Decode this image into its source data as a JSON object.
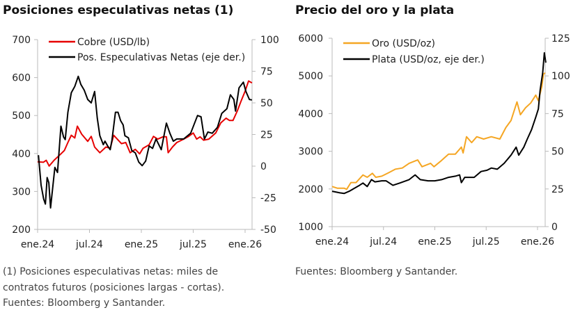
{
  "chart_data": [
    {
      "type": "line",
      "title": "Posiciones especulativas netas (1)",
      "x_unit": "months since ene.24",
      "xticks": [
        {
          "m": 0,
          "label": "ene.24"
        },
        {
          "m": 6,
          "label": "jul.24"
        },
        {
          "m": 12,
          "label": "ene.25"
        },
        {
          "m": 18,
          "label": "jul.25"
        },
        {
          "m": 24,
          "label": "ene.26"
        }
      ],
      "y_left": {
        "min": 200,
        "max": 700,
        "ticks": [
          "200",
          "300",
          "400",
          "500",
          "600",
          "700"
        ]
      },
      "y_right": {
        "min": -50,
        "max": 100,
        "ticks": [
          "-50",
          "-25",
          "0",
          "25",
          "50",
          "75",
          "100"
        ]
      },
      "legend_placement": "top-left",
      "series": [
        {
          "name": "Cobre (USD/lb)",
          "axis": "left",
          "color": "#e60000",
          "x": [
            0,
            0.67,
            1,
            1.34,
            1.9,
            2.7,
            3.1,
            3.5,
            3.9,
            4.3,
            4.6,
            5.1,
            5.8,
            6.2,
            6.6,
            7.2,
            7.9,
            8.4,
            8.8,
            9.7,
            10.2,
            10.7,
            11.3,
            11.8,
            12.2,
            12.9,
            13.4,
            13.9,
            14.5,
            14.9,
            15.1,
            15.6,
            16.1,
            16.9,
            17.4,
            18.0,
            18.4,
            18.8,
            19.2,
            19.8,
            20.6,
            21.2,
            21.8,
            22.2,
            22.6,
            23.1,
            23.5,
            24.0,
            24.4,
            24.8
          ],
          "y": [
            378,
            377,
            382,
            367,
            382,
            399,
            408,
            429,
            448,
            441,
            472,
            451,
            432,
            445,
            417,
            402,
            417,
            414,
            448,
            426,
            429,
            402,
            411,
            399,
            414,
            423,
            445,
            438,
            444,
            444,
            402,
            417,
            429,
            438,
            444,
            454,
            438,
            444,
            435,
            438,
            454,
            481,
            493,
            487,
            487,
            512,
            536,
            564,
            591,
            586
          ]
        },
        {
          "name": "Pos. Especulativas Netas (eje der.)",
          "axis": "right",
          "color": "#000000",
          "x": [
            0.1,
            0.4,
            0.7,
            0.9,
            1.1,
            1.3,
            1.5,
            2.0,
            2.3,
            2.7,
            3.0,
            3.2,
            3.5,
            3.9,
            4.3,
            4.7,
            5.0,
            5.4,
            5.8,
            6.2,
            6.6,
            6.9,
            7.2,
            7.6,
            7.8,
            8.1,
            8.4,
            8.6,
            9.0,
            9.3,
            9.6,
            9.9,
            10.1,
            10.5,
            10.9,
            11.3,
            11.7,
            12.1,
            12.5,
            12.9,
            13.3,
            13.7,
            14.3,
            14.9,
            15.3,
            15.7,
            16.1,
            16.9,
            17.7,
            18.5,
            18.9,
            19.3,
            19.7,
            20.2,
            20.8,
            21.3,
            21.9,
            22.3,
            22.7,
            22.9,
            23.3,
            23.8,
            24.1,
            24.5,
            24.8
          ],
          "y": [
            8.7,
            -15,
            -26,
            -30,
            -9,
            -13,
            -33,
            -1,
            -5,
            31.6,
            23,
            21,
            42.6,
            58,
            63,
            71,
            64.6,
            60,
            52.7,
            50,
            59,
            38,
            24,
            17,
            19.7,
            16,
            13,
            20.6,
            42.6,
            42.6,
            36,
            32.5,
            24,
            22.4,
            12.3,
            10.5,
            3.2,
            0.4,
            4,
            16,
            14,
            21.5,
            13,
            34,
            26,
            19.7,
            21.5,
            21.5,
            26,
            40,
            39,
            21.5,
            27,
            26,
            30.7,
            41.7,
            45.4,
            56.4,
            52.7,
            43.5,
            61.9,
            66.4,
            59,
            52.7,
            52.3
          ]
        }
      ]
    },
    {
      "type": "line",
      "title": "Precio del oro y la plata",
      "x_unit": "months since ene.24",
      "xticks": [
        {
          "m": 0,
          "label": "ene.24"
        },
        {
          "m": 6,
          "label": "jul.24"
        },
        {
          "m": 12,
          "label": "ene.25"
        },
        {
          "m": 18,
          "label": "jul.25"
        },
        {
          "m": 24,
          "label": "ene.26"
        }
      ],
      "y_left": {
        "min": 1000,
        "max": 6000,
        "ticks": [
          "1000",
          "2000",
          "3000",
          "4000",
          "5000",
          "6000"
        ]
      },
      "y_right": {
        "min": 0,
        "max": 125,
        "ticks": [
          "0",
          "25",
          "50",
          "75",
          "100",
          "125"
        ]
      },
      "legend_placement": "top-left",
      "series": [
        {
          "name": "Oro (USD/oz)",
          "axis": "left",
          "color": "#f5a623",
          "x": [
            0,
            0.6,
            1.4,
            1.7,
            2.2,
            2.8,
            3.6,
            4.1,
            4.7,
            5.1,
            5.8,
            6.6,
            7.4,
            8.2,
            9.0,
            10.0,
            10.5,
            11.5,
            11.9,
            12.7,
            13.6,
            14.4,
            15.1,
            15.3,
            15.7,
            16.3,
            16.9,
            17.7,
            18.6,
            19.6,
            20.3,
            20.9,
            21.6,
            22.0,
            22.6,
            23.2,
            23.8,
            24.1,
            24.5,
            24.7,
            24.9
          ],
          "y": [
            2065,
            2020,
            2020,
            1990,
            2170,
            2170,
            2370,
            2310,
            2415,
            2310,
            2340,
            2430,
            2525,
            2555,
            2680,
            2770,
            2590,
            2680,
            2590,
            2740,
            2925,
            2925,
            3110,
            2955,
            3385,
            3230,
            3385,
            3325,
            3385,
            3325,
            3630,
            3815,
            4310,
            3970,
            4155,
            4280,
            4490,
            4340,
            4710,
            5050,
            5080
          ]
        },
        {
          "name": "Plata (USD/oz, eje der.)",
          "axis": "right",
          "color": "#000000",
          "x": [
            0,
            0.9,
            1.4,
            2.0,
            2.7,
            3.2,
            3.6,
            4.1,
            4.6,
            5.0,
            5.8,
            6.3,
            7.1,
            7.9,
            9.0,
            9.7,
            10.3,
            11.2,
            12.0,
            12.8,
            13.6,
            14.4,
            14.9,
            15.1,
            15.5,
            16.6,
            17.4,
            18.1,
            18.6,
            19.3,
            20.1,
            20.9,
            21.5,
            21.8,
            22.4,
            22.8,
            23.3,
            23.8,
            24.1,
            24.3,
            24.6,
            24.8,
            24.97
          ],
          "y": [
            23.5,
            22.4,
            22,
            23.5,
            25.8,
            27.4,
            28.9,
            26.6,
            31.2,
            29.7,
            30.4,
            30.4,
            27.4,
            28.9,
            31.2,
            34.3,
            31.2,
            30.4,
            30.4,
            31.2,
            32.7,
            33.5,
            34.3,
            29.2,
            32.7,
            32.7,
            36.6,
            37.4,
            38.9,
            38.1,
            42,
            47.4,
            52.7,
            47.4,
            52.7,
            58.1,
            64.3,
            72.7,
            78.1,
            90.4,
            102,
            115.3,
            108.8
          ]
        }
      ]
    }
  ],
  "footnotes": {
    "left": [
      "(1) Posiciones especulativas netas: miles de",
      "contratos futuros (posiciones largas - cortas).",
      "Fuentes: Bloomberg y Santander."
    ],
    "right": [
      "Fuentes: Bloomberg y Santander."
    ]
  }
}
